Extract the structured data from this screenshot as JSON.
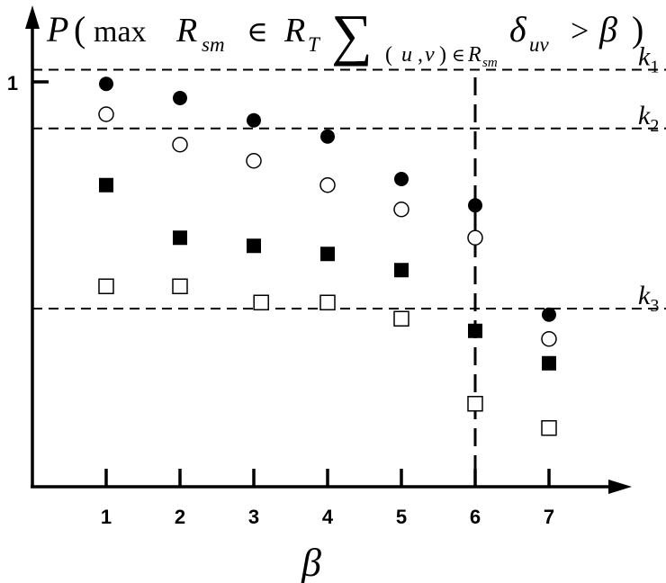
{
  "chart_data": {
    "type": "scatter",
    "title": {
      "p": "P",
      "open": "(",
      "max": "max",
      "r": "R",
      "r_sub": "sm",
      "in1": "∈",
      "rt": "R",
      "rt_sub": "T",
      "sigma": "∑",
      "idx_open": "(",
      "idx_u": "u",
      "idx_comma": ",",
      "idx_v": "v",
      "idx_close": ")",
      "idx_in": "∈",
      "idx_r": "R",
      "idx_r_sub": "sm",
      "delta": "δ",
      "delta_sub": "uv",
      "gt": ">",
      "beta": "β",
      "close": ")"
    },
    "xlabel": "β",
    "ylabel": "",
    "xlim": [
      0,
      7.9
    ],
    "ylim": [
      0,
      1.08
    ],
    "x_ticks": [
      1,
      2,
      3,
      4,
      5,
      6,
      7
    ],
    "x_tick_labels": [
      "1",
      "2",
      "3",
      "4",
      "5",
      "6",
      "7"
    ],
    "y_ticks": [
      1
    ],
    "y_tick_labels": [
      "1"
    ],
    "series": [
      {
        "marker": "filled-circle",
        "color": "#000000",
        "x": [
          1,
          2,
          3,
          4,
          5,
          6,
          7
        ],
        "y": [
          0.995,
          0.96,
          0.905,
          0.865,
          0.76,
          0.695,
          0.425
        ]
      },
      {
        "marker": "open-circle",
        "color": "#000000",
        "x": [
          1,
          2,
          3,
          4,
          5,
          6,
          7
        ],
        "y": [
          0.92,
          0.845,
          0.805,
          0.745,
          0.685,
          0.615,
          0.365
        ]
      },
      {
        "marker": "filled-square",
        "color": "#000000",
        "x": [
          1,
          2,
          3,
          4,
          5,
          6,
          7
        ],
        "y": [
          0.745,
          0.615,
          0.595,
          0.575,
          0.535,
          0.385,
          0.305
        ]
      },
      {
        "marker": "open-square",
        "color": "#000000",
        "x": [
          1,
          2,
          3.1,
          4,
          5,
          6,
          7
        ],
        "y": [
          0.495,
          0.495,
          0.455,
          0.455,
          0.415,
          0.205,
          0.145
        ]
      }
    ],
    "reference_lines": [
      {
        "orientation": "horizontal",
        "y": 1.03,
        "label": "k",
        "label_sub": "1"
      },
      {
        "orientation": "horizontal",
        "y": 0.885,
        "label": "k",
        "label_sub": "2"
      },
      {
        "orientation": "horizontal",
        "y": 0.44,
        "label": "k",
        "label_sub": "3"
      },
      {
        "orientation": "vertical",
        "x": 6,
        "label": ""
      }
    ],
    "grid": false,
    "legend": "none"
  }
}
